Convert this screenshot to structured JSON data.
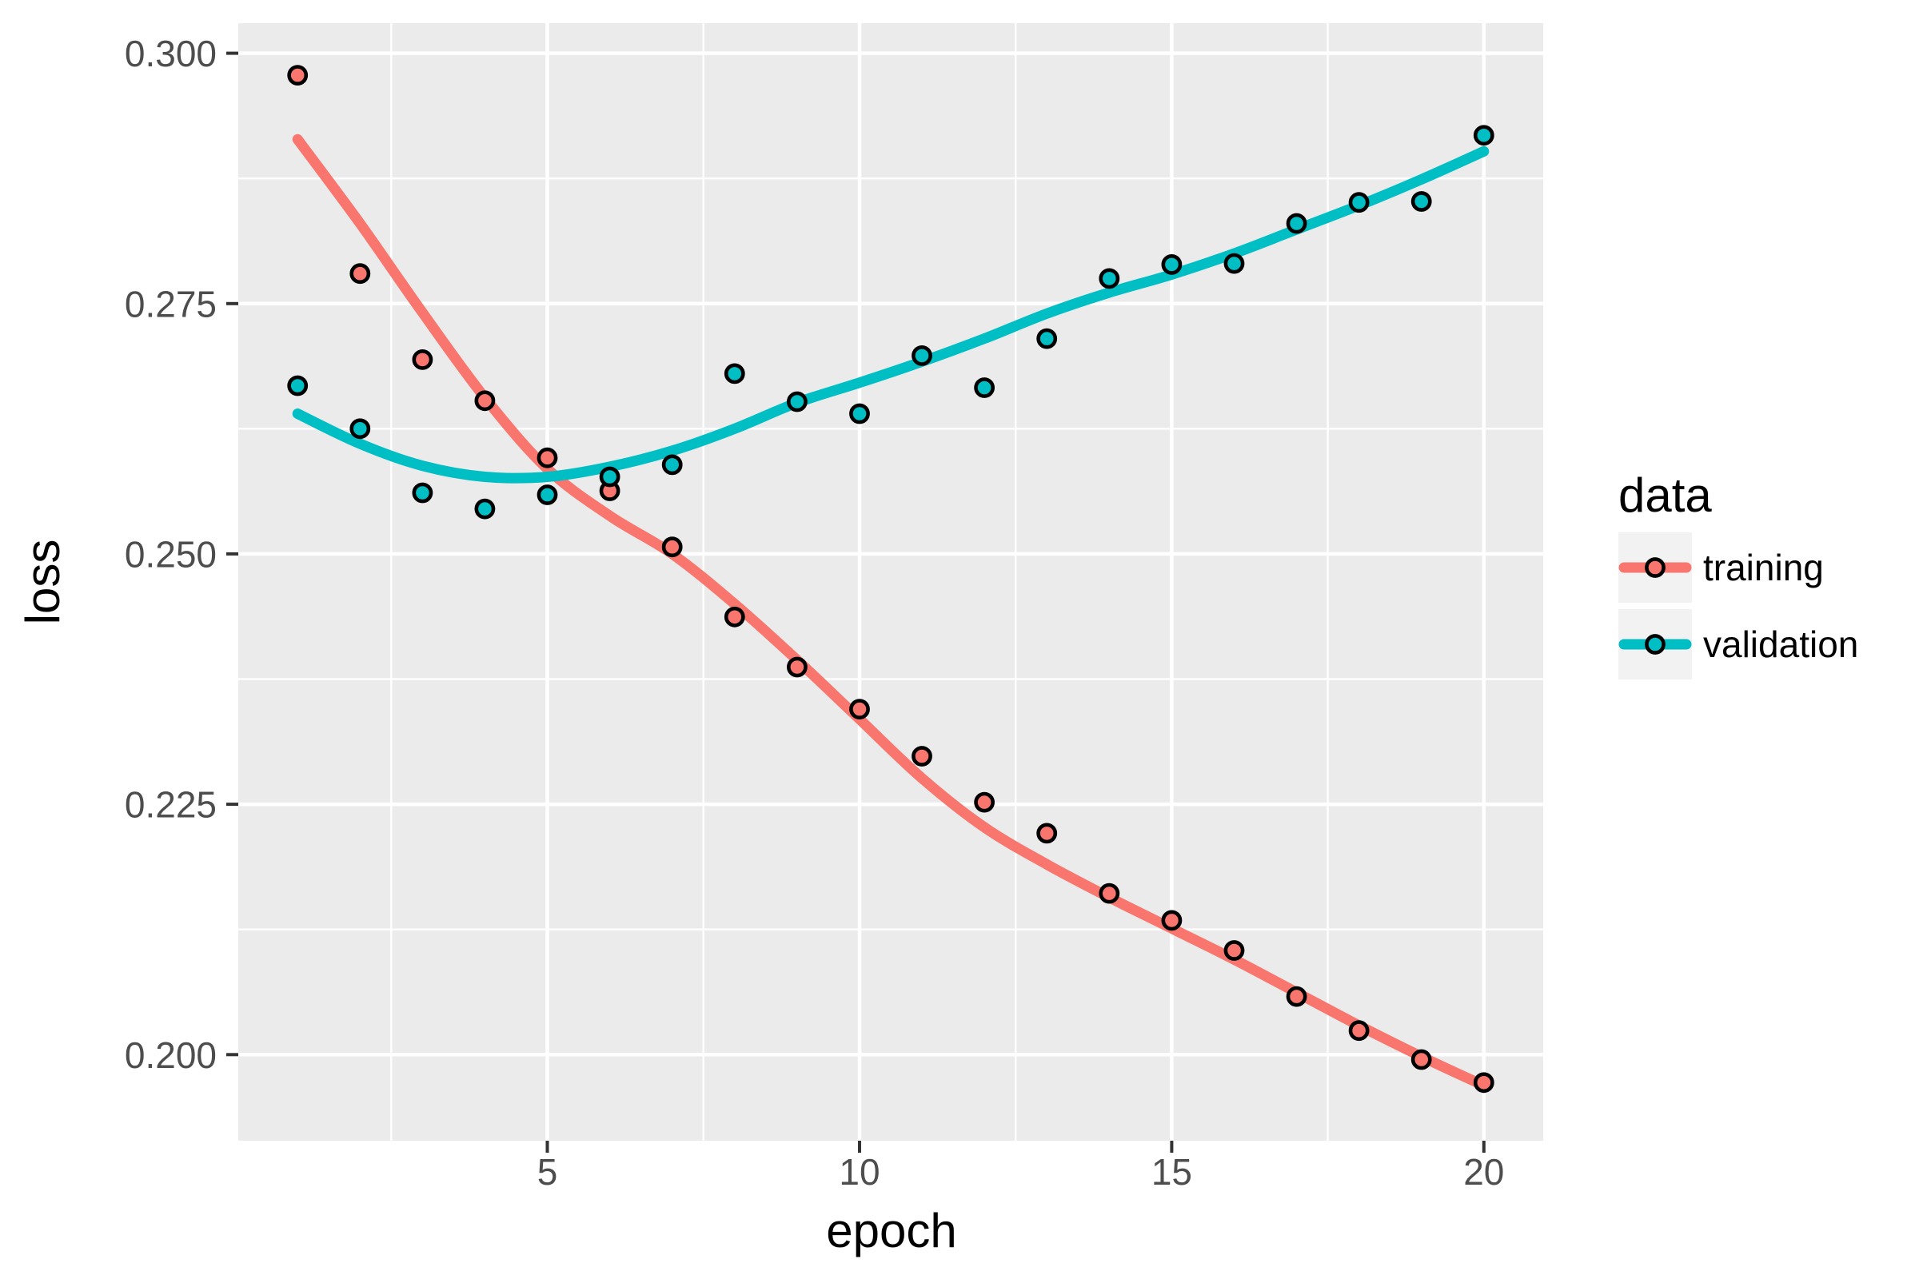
{
  "window": {
    "background": "#FFFFFF"
  },
  "chart_data": {
    "type": "scatter",
    "title": "",
    "xlabel": "epoch",
    "ylabel": "loss",
    "legend": {
      "title": "data",
      "position": "right",
      "entries": [
        "training",
        "validation"
      ]
    },
    "x": [
      1,
      2,
      3,
      4,
      5,
      6,
      7,
      8,
      9,
      10,
      11,
      12,
      13,
      14,
      15,
      16,
      17,
      18,
      19,
      20
    ],
    "series": [
      {
        "name": "training",
        "color": "#F8766D",
        "points": [
          0.2978,
          0.278,
          0.2694,
          0.2653,
          0.2596,
          0.2563,
          0.2507,
          0.2437,
          0.2387,
          0.2345,
          0.2298,
          0.2252,
          0.2221,
          0.2161,
          0.2134,
          0.2104,
          0.2058,
          0.2024,
          0.1995,
          0.1972
        ],
        "smooth": [
          0.2914,
          0.283,
          0.2741,
          0.2656,
          0.2585,
          0.2538,
          0.25,
          0.245,
          0.2394,
          0.2335,
          0.2276,
          0.2227,
          0.219,
          0.2157,
          0.2126,
          0.2095,
          0.2062,
          0.2029,
          0.1998,
          0.1969
        ]
      },
      {
        "name": "validation",
        "color": "#00BFC4",
        "points": [
          0.2668,
          0.2625,
          0.2561,
          0.2545,
          0.2559,
          0.2577,
          0.2589,
          0.268,
          0.2652,
          0.264,
          0.2698,
          0.2666,
          0.2715,
          0.2775,
          0.2789,
          0.279,
          0.283,
          0.2851,
          0.2852,
          0.2918
        ],
        "smooth": [
          0.264,
          0.261,
          0.2588,
          0.2577,
          0.2577,
          0.2587,
          0.2603,
          0.2625,
          0.2651,
          0.2671,
          0.2692,
          0.2715,
          0.274,
          0.2761,
          0.2779,
          0.28,
          0.2824,
          0.2848,
          0.2874,
          0.2902
        ]
      }
    ],
    "axes": {
      "x": {
        "lim": [
          0.05,
          20.95
        ],
        "ticks": [
          5,
          10,
          15,
          20
        ],
        "tick_labels": [
          "5",
          "10",
          "15",
          "20"
        ],
        "minor": [
          2.5,
          7.5,
          12.5,
          17.5
        ],
        "grid": true
      },
      "y": {
        "lim": [
          0.1914,
          0.303
        ],
        "ticks": [
          0.2,
          0.225,
          0.25,
          0.275,
          0.3
        ],
        "tick_labels": [
          "0.200",
          "0.225",
          "0.250",
          "0.275",
          "0.300"
        ],
        "minor": [
          0.2125,
          0.2375,
          0.2625,
          0.2875
        ],
        "grid": true
      }
    },
    "style": {
      "panel_bg": "#EBEBEB",
      "grid_color": "#FFFFFF",
      "tick_text_color": "#4D4D4D",
      "tick_mark_color": "#333333",
      "text_color": "#000000",
      "legend_key_bg": "#F2F2F2"
    }
  }
}
